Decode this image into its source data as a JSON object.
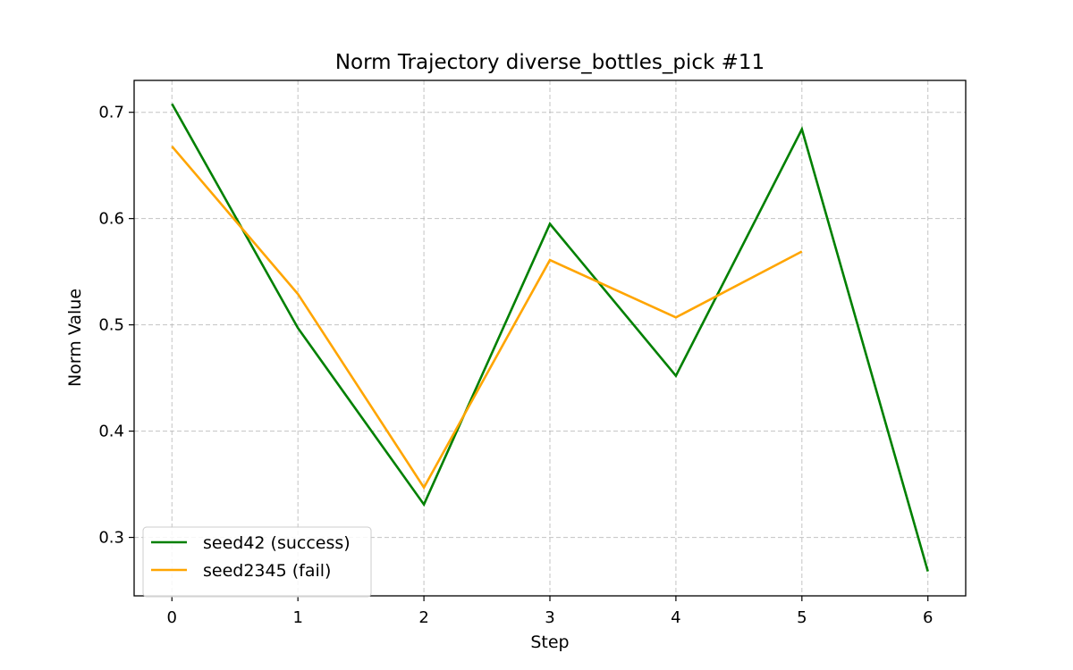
{
  "chart_data": {
    "type": "line",
    "title": "Norm Trajectory diverse_bottles_pick #11",
    "xlabel": "Step",
    "ylabel": "Norm Value",
    "xlim": [
      -0.3,
      6.3
    ],
    "ylim": [
      0.245,
      0.73
    ],
    "xticks": [
      0,
      1,
      2,
      3,
      4,
      5,
      6
    ],
    "xtick_labels": [
      "0",
      "1",
      "2",
      "3",
      "4",
      "5",
      "6"
    ],
    "yticks": [
      0.3,
      0.4,
      0.5,
      0.6,
      0.7
    ],
    "ytick_labels": [
      "0.3",
      "0.4",
      "0.5",
      "0.6",
      "0.7"
    ],
    "grid": true,
    "grid_style": "dashed",
    "legend_position": "lower-left",
    "series": [
      {
        "name": "seed42 (success)",
        "color": "#008000",
        "x": [
          0,
          1,
          2,
          3,
          4,
          5,
          6
        ],
        "values": [
          0.708,
          0.497,
          0.331,
          0.595,
          0.452,
          0.684,
          0.268
        ]
      },
      {
        "name": "seed2345 (fail)",
        "color": "#FFA500",
        "x": [
          0,
          1,
          2,
          3,
          4,
          5
        ],
        "values": [
          0.668,
          0.529,
          0.347,
          0.561,
          0.507,
          0.569
        ]
      }
    ]
  }
}
